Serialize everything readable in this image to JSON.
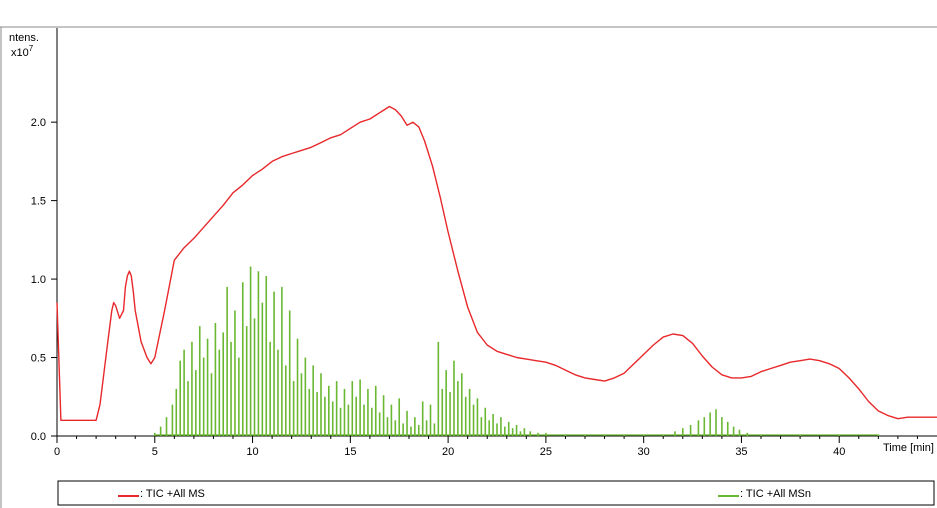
{
  "chart_data": {
    "type": "line",
    "ylabel": "ntens.",
    "yunit_base": "x10",
    "yunit_exp": "7",
    "xlabel": "Time [min]",
    "xlim": [
      0,
      45
    ],
    "ylim": [
      0,
      2.6
    ],
    "x_ticks": [
      0,
      5,
      10,
      15,
      20,
      25,
      30,
      35,
      40
    ],
    "y_ticks": [
      {
        "value": 0.0,
        "label": "0.0"
      },
      {
        "value": 0.5,
        "label": "0.5"
      },
      {
        "value": 1.0,
        "label": "1.0"
      },
      {
        "value": 1.5,
        "label": "1.5"
      },
      {
        "value": 2.0,
        "label": "2.0"
      }
    ],
    "grid": false,
    "legend_position": "bottom",
    "series": [
      {
        "name": ": TIC +All MS",
        "color": "#e8282b",
        "style": "line",
        "x": [
          0.0,
          0.2,
          0.5,
          1.0,
          1.5,
          2.0,
          2.2,
          2.4,
          2.6,
          2.8,
          2.9,
          3.0,
          3.2,
          3.4,
          3.5,
          3.6,
          3.7,
          3.8,
          3.9,
          4.0,
          4.3,
          4.6,
          4.8,
          5.0,
          5.5,
          6.0,
          6.5,
          7.0,
          7.5,
          8.0,
          8.5,
          9.0,
          9.5,
          10.0,
          10.5,
          11.0,
          11.5,
          12.0,
          12.5,
          13.0,
          13.5,
          14.0,
          14.5,
          15.0,
          15.5,
          16.0,
          16.5,
          17.0,
          17.3,
          17.6,
          17.9,
          18.2,
          18.5,
          18.8,
          19.2,
          19.6,
          20.0,
          20.5,
          21.0,
          21.5,
          22.0,
          22.5,
          23.0,
          23.5,
          24.0,
          24.5,
          25.0,
          25.5,
          26.0,
          26.5,
          27.0,
          27.5,
          28.0,
          28.5,
          29.0,
          29.5,
          30.0,
          30.5,
          31.0,
          31.5,
          32.0,
          32.5,
          33.0,
          33.5,
          34.0,
          34.5,
          35.0,
          35.5,
          36.0,
          36.5,
          37.0,
          37.5,
          38.0,
          38.5,
          39.0,
          39.5,
          40.0,
          40.5,
          41.0,
          41.5,
          42.0,
          42.5,
          43.0,
          43.5,
          44.0,
          44.5,
          45.0
        ],
        "y": [
          0.85,
          0.1,
          0.1,
          0.1,
          0.1,
          0.1,
          0.2,
          0.4,
          0.6,
          0.8,
          0.85,
          0.83,
          0.75,
          0.8,
          0.95,
          1.02,
          1.05,
          1.02,
          0.92,
          0.8,
          0.6,
          0.5,
          0.46,
          0.5,
          0.8,
          1.12,
          1.2,
          1.26,
          1.33,
          1.4,
          1.47,
          1.55,
          1.6,
          1.66,
          1.7,
          1.75,
          1.78,
          1.8,
          1.82,
          1.84,
          1.87,
          1.9,
          1.92,
          1.96,
          2.0,
          2.02,
          2.06,
          2.1,
          2.08,
          2.04,
          1.98,
          2.0,
          1.97,
          1.88,
          1.72,
          1.52,
          1.3,
          1.05,
          0.82,
          0.66,
          0.58,
          0.54,
          0.52,
          0.5,
          0.49,
          0.48,
          0.47,
          0.45,
          0.42,
          0.39,
          0.37,
          0.36,
          0.35,
          0.37,
          0.4,
          0.46,
          0.52,
          0.58,
          0.63,
          0.65,
          0.64,
          0.59,
          0.51,
          0.44,
          0.39,
          0.37,
          0.37,
          0.38,
          0.41,
          0.43,
          0.45,
          0.47,
          0.48,
          0.49,
          0.48,
          0.46,
          0.43,
          0.37,
          0.3,
          0.22,
          0.16,
          0.13,
          0.11,
          0.12,
          0.12,
          0.12,
          0.12
        ]
      },
      {
        "name": ": TIC +All MSn",
        "color": "#6ab832",
        "style": "spikes",
        "x": [
          5.0,
          5.3,
          5.6,
          5.9,
          6.1,
          6.3,
          6.5,
          6.7,
          6.9,
          7.1,
          7.3,
          7.5,
          7.7,
          7.9,
          8.1,
          8.3,
          8.5,
          8.7,
          8.9,
          9.1,
          9.3,
          9.5,
          9.7,
          9.9,
          10.1,
          10.3,
          10.5,
          10.7,
          10.9,
          11.1,
          11.3,
          11.5,
          11.7,
          11.9,
          12.1,
          12.3,
          12.5,
          12.7,
          12.9,
          13.1,
          13.3,
          13.5,
          13.7,
          13.9,
          14.1,
          14.3,
          14.5,
          14.7,
          14.9,
          15.1,
          15.3,
          15.5,
          15.7,
          15.9,
          16.1,
          16.3,
          16.5,
          16.7,
          16.9,
          17.1,
          17.3,
          17.5,
          17.7,
          17.9,
          18.1,
          18.3,
          18.5,
          18.7,
          18.9,
          19.1,
          19.3,
          19.5,
          19.7,
          19.9,
          20.1,
          20.3,
          20.5,
          20.7,
          20.9,
          21.1,
          21.3,
          21.5,
          21.7,
          21.9,
          22.1,
          22.3,
          22.5,
          22.7,
          22.9,
          23.1,
          23.3,
          23.5,
          23.7,
          23.9,
          24.2,
          24.6,
          25.0,
          26.0,
          27.0,
          28.0,
          29.0,
          30.0,
          31.0,
          31.6,
          32.0,
          32.4,
          32.8,
          33.1,
          33.4,
          33.7,
          34.0,
          34.3,
          34.6,
          34.9,
          35.3,
          36.0,
          38.0,
          40.0,
          42.0
        ],
        "y": [
          0.02,
          0.06,
          0.12,
          0.2,
          0.3,
          0.48,
          0.55,
          0.35,
          0.6,
          0.42,
          0.7,
          0.5,
          0.62,
          0.4,
          0.72,
          0.55,
          0.66,
          0.95,
          0.6,
          0.8,
          0.5,
          0.98,
          0.7,
          1.08,
          0.75,
          1.05,
          0.85,
          1.02,
          0.6,
          0.92,
          0.55,
          0.95,
          0.45,
          0.8,
          0.35,
          0.62,
          0.4,
          0.5,
          0.3,
          0.45,
          0.28,
          0.4,
          0.25,
          0.32,
          0.22,
          0.35,
          0.18,
          0.3,
          0.2,
          0.35,
          0.25,
          0.36,
          0.2,
          0.3,
          0.18,
          0.32,
          0.15,
          0.26,
          0.12,
          0.2,
          0.1,
          0.24,
          0.08,
          0.16,
          0.06,
          0.12,
          0.07,
          0.22,
          0.1,
          0.2,
          0.08,
          0.6,
          0.3,
          0.42,
          0.28,
          0.48,
          0.35,
          0.4,
          0.25,
          0.3,
          0.2,
          0.24,
          0.12,
          0.18,
          0.1,
          0.14,
          0.08,
          0.12,
          0.06,
          0.09,
          0.05,
          0.07,
          0.03,
          0.05,
          0.03,
          0.02,
          0.02,
          0.01,
          0.01,
          0.01,
          0.01,
          0.01,
          0.01,
          0.03,
          0.05,
          0.07,
          0.1,
          0.12,
          0.15,
          0.17,
          0.12,
          0.09,
          0.06,
          0.04,
          0.02,
          0.01,
          0.01,
          0.01,
          0.01
        ]
      }
    ]
  }
}
